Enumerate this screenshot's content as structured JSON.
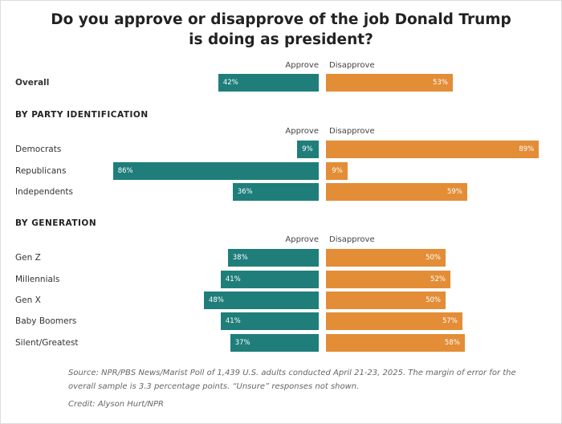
{
  "title": "Do you approve or disapprove of the job Donald Trump is doing as president?",
  "chart_data": {
    "type": "bar",
    "orientation": "horizontal-diverging",
    "colors": {
      "approve": "#1f7e7a",
      "disapprove": "#e38d37"
    },
    "series_labels": {
      "approve": "Approve",
      "disapprove": "Disapprove"
    },
    "groups": [
      {
        "heading": "",
        "rows": [
          {
            "label": "Overall",
            "approve": 42,
            "disapprove": 53
          }
        ]
      },
      {
        "heading": "BY PARTY IDENTIFICATION",
        "rows": [
          {
            "label": "Democrats",
            "approve": 9,
            "disapprove": 89
          },
          {
            "label": "Republicans",
            "approve": 86,
            "disapprove": 9
          },
          {
            "label": "Independents",
            "approve": 36,
            "disapprove": 59
          }
        ]
      },
      {
        "heading": "BY GENERATION",
        "rows": [
          {
            "label": "Gen Z",
            "approve": 38,
            "disapprove": 50
          },
          {
            "label": "Millennials",
            "approve": 41,
            "disapprove": 52
          },
          {
            "label": "Gen X",
            "approve": 48,
            "disapprove": 50
          },
          {
            "label": "Baby Boomers",
            "approve": 41,
            "disapprove": 57
          },
          {
            "label": "Silent/Greatest",
            "approve": 37,
            "disapprove": 58
          }
        ]
      }
    ]
  },
  "footer": {
    "source": "Source: NPR/PBS News/Marist Poll of 1,439 U.S. adults conducted April 21-23, 2025. The margin of error for the overall sample is 3.3 percentage points. “Unsure” responses not shown.",
    "credit": "Credit: Alyson Hurt/NPR"
  }
}
